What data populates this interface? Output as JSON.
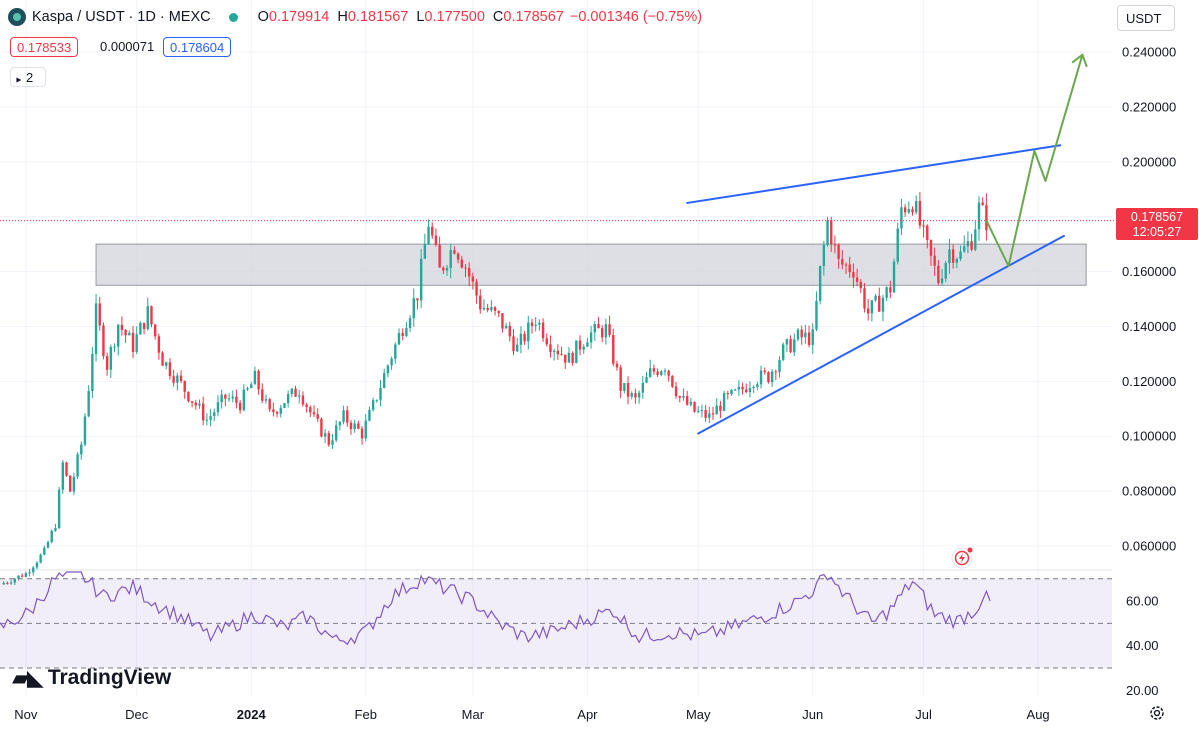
{
  "header": {
    "symbol": "Kaspa / USDT · 1D · MEXC",
    "open_label": "O",
    "open": "0.179914",
    "high_label": "H",
    "high": "0.181567",
    "low_label": "L",
    "low": "0.177500",
    "close_label": "C",
    "close": "0.178567",
    "change": "−0.001346 (−0.75%)",
    "bid": "0.178533",
    "spread": "0.000071",
    "ask": "0.178604",
    "indicator_count": "2"
  },
  "currency_button": "USDT",
  "brand": "TradingView",
  "colors": {
    "up": "#26a69a",
    "down": "#f23645",
    "trend": "#2962ff",
    "projection": "#6aa84f",
    "rsi": "#7e57c2",
    "zone": "#d1d4dc"
  },
  "icons": {
    "settings": "gear-icon",
    "alert": "lightning-icon",
    "indicators": "chevron-icon"
  },
  "chart_data": {
    "type": "candlestick",
    "title": "Kaspa / USDT · 1D · MEXC",
    "y_axis": {
      "range": [
        0.052,
        0.248
      ],
      "ticks": [
        0.06,
        0.08,
        0.1,
        0.12,
        0.14,
        0.16,
        0.18,
        0.2,
        0.22,
        0.24
      ],
      "tick_labels": [
        "0.060000",
        "0.080000",
        "0.100000",
        "0.120000",
        "0.140000",
        "0.160000",
        "0.180000",
        "0.200000",
        "0.220000",
        "0.240000"
      ]
    },
    "x_axis": {
      "start": "2023-10-25",
      "end": "2024-08-21",
      "labels": [
        {
          "date": "2023-11-01",
          "text": "Nov"
        },
        {
          "date": "2023-12-01",
          "text": "Dec"
        },
        {
          "date": "2024-01-01",
          "text": "2024"
        },
        {
          "date": "2024-02-01",
          "text": "Feb"
        },
        {
          "date": "2024-03-01",
          "text": "Mar"
        },
        {
          "date": "2024-04-01",
          "text": "Apr"
        },
        {
          "date": "2024-05-01",
          "text": "May"
        },
        {
          "date": "2024-06-01",
          "text": "Jun"
        },
        {
          "date": "2024-07-01",
          "text": "Jul"
        },
        {
          "date": "2024-08-01",
          "text": "Aug"
        }
      ]
    },
    "price_path": [
      [
        "2023-10-25",
        0.046
      ],
      [
        "2023-11-01",
        0.05
      ],
      [
        "2023-11-06",
        0.058
      ],
      [
        "2023-11-09",
        0.068
      ],
      [
        "2023-11-11",
        0.09
      ],
      [
        "2023-11-13",
        0.08
      ],
      [
        "2023-11-16",
        0.097
      ],
      [
        "2023-11-18",
        0.118
      ],
      [
        "2023-11-20",
        0.145
      ],
      [
        "2023-11-23",
        0.126
      ],
      [
        "2023-11-26",
        0.141
      ],
      [
        "2023-11-30",
        0.133
      ],
      [
        "2023-12-04",
        0.145
      ],
      [
        "2023-12-08",
        0.128
      ],
      [
        "2023-12-14",
        0.117
      ],
      [
        "2023-12-20",
        0.106
      ],
      [
        "2023-12-25",
        0.114
      ],
      [
        "2023-12-29",
        0.112
      ],
      [
        "2024-01-02",
        0.121
      ],
      [
        "2024-01-06",
        0.108
      ],
      [
        "2024-01-10",
        0.113
      ],
      [
        "2024-01-14",
        0.117
      ],
      [
        "2024-01-18",
        0.106
      ],
      [
        "2024-01-22",
        0.098
      ],
      [
        "2024-01-26",
        0.107
      ],
      [
        "2024-01-31",
        0.101
      ],
      [
        "2024-02-03",
        0.111
      ],
      [
        "2024-02-07",
        0.126
      ],
      [
        "2024-02-11",
        0.14
      ],
      [
        "2024-02-15",
        0.152
      ],
      [
        "2024-02-18",
        0.178
      ],
      [
        "2024-02-21",
        0.16
      ],
      [
        "2024-02-25",
        0.17
      ],
      [
        "2024-02-28",
        0.162
      ],
      [
        "2024-03-03",
        0.148
      ],
      [
        "2024-03-08",
        0.143
      ],
      [
        "2024-03-13",
        0.132
      ],
      [
        "2024-03-18",
        0.143
      ],
      [
        "2024-03-22",
        0.134
      ],
      [
        "2024-03-27",
        0.128
      ],
      [
        "2024-04-01",
        0.137
      ],
      [
        "2024-04-06",
        0.139
      ],
      [
        "2024-04-10",
        0.118
      ],
      [
        "2024-04-14",
        0.113
      ],
      [
        "2024-04-18",
        0.123
      ],
      [
        "2024-04-22",
        0.126
      ],
      [
        "2024-04-26",
        0.114
      ],
      [
        "2024-04-30",
        0.109
      ],
      [
        "2024-05-04",
        0.107
      ],
      [
        "2024-05-08",
        0.113
      ],
      [
        "2024-05-12",
        0.116
      ],
      [
        "2024-05-16",
        0.121
      ],
      [
        "2024-05-20",
        0.122
      ],
      [
        "2024-05-24",
        0.131
      ],
      [
        "2024-05-28",
        0.136
      ],
      [
        "2024-06-01",
        0.136
      ],
      [
        "2024-06-03",
        0.16
      ],
      [
        "2024-06-05",
        0.178
      ],
      [
        "2024-06-08",
        0.163
      ],
      [
        "2024-06-12",
        0.161
      ],
      [
        "2024-06-16",
        0.145
      ],
      [
        "2024-06-19",
        0.149
      ],
      [
        "2024-06-22",
        0.154
      ],
      [
        "2024-06-25",
        0.183
      ],
      [
        "2024-06-28",
        0.186
      ],
      [
        "2024-07-02",
        0.168
      ],
      [
        "2024-07-05",
        0.157
      ],
      [
        "2024-07-08",
        0.168
      ],
      [
        "2024-07-11",
        0.166
      ],
      [
        "2024-07-14",
        0.172
      ],
      [
        "2024-07-16",
        0.183
      ],
      [
        "2024-07-18",
        0.1786
      ]
    ],
    "last_price": {
      "value": 0.178567,
      "label": "0.178567",
      "countdown": "12:05:27"
    },
    "resistance_zone": {
      "low": 0.155,
      "high": 0.17,
      "from": "2023-11-20",
      "to": "2024-08-14"
    },
    "trendlines": [
      {
        "name": "upper",
        "from": [
          "2024-04-28",
          0.185
        ],
        "to": [
          "2024-08-07",
          0.206
        ]
      },
      {
        "name": "lower",
        "from": [
          "2024-05-01",
          0.101
        ],
        "to": [
          "2024-08-08",
          0.173
        ]
      }
    ],
    "projection": [
      [
        "2024-07-18",
        0.1786
      ],
      [
        "2024-07-24",
        0.162
      ],
      [
        "2024-07-31",
        0.204
      ],
      [
        "2024-08-03",
        0.193
      ],
      [
        "2024-08-13",
        0.239
      ]
    ],
    "rsi": {
      "ticks": [
        20,
        40,
        60
      ],
      "tick_labels": [
        "20.00",
        "40.00",
        "60.00"
      ],
      "range": [
        17,
        73
      ],
      "upper_band": 70,
      "middle_band": 50,
      "lower_band": 30,
      "path": [
        [
          "2023-10-25",
          48
        ],
        [
          "2023-11-02",
          55
        ],
        [
          "2023-11-09",
          70
        ],
        [
          "2023-11-16",
          72
        ],
        [
          "2023-11-22",
          62
        ],
        [
          "2023-11-30",
          66
        ],
        [
          "2023-12-07",
          58
        ],
        [
          "2023-12-14",
          52
        ],
        [
          "2023-12-21",
          44
        ],
        [
          "2024-01-02",
          54
        ],
        [
          "2024-01-10",
          48
        ],
        [
          "2024-01-16",
          53
        ],
        [
          "2024-01-24",
          42
        ],
        [
          "2024-02-01",
          46
        ],
        [
          "2024-02-08",
          62
        ],
        [
          "2024-02-16",
          70
        ],
        [
          "2024-02-22",
          66
        ],
        [
          "2024-03-01",
          60
        ],
        [
          "2024-03-08",
          50
        ],
        [
          "2024-03-15",
          44
        ],
        [
          "2024-03-22",
          46
        ],
        [
          "2024-04-01",
          52
        ],
        [
          "2024-04-08",
          56
        ],
        [
          "2024-04-15",
          44
        ],
        [
          "2024-04-24",
          46
        ],
        [
          "2024-05-02",
          44
        ],
        [
          "2024-05-10",
          48
        ],
        [
          "2024-05-20",
          54
        ],
        [
          "2024-05-28",
          60
        ],
        [
          "2024-06-02",
          66
        ],
        [
          "2024-06-05",
          73
        ],
        [
          "2024-06-10",
          62
        ],
        [
          "2024-06-17",
          50
        ],
        [
          "2024-06-22",
          56
        ],
        [
          "2024-06-28",
          69
        ],
        [
          "2024-07-04",
          54
        ],
        [
          "2024-07-10",
          51
        ],
        [
          "2024-07-15",
          56
        ],
        [
          "2024-07-17",
          62
        ],
        [
          "2024-07-19",
          60
        ]
      ]
    }
  }
}
